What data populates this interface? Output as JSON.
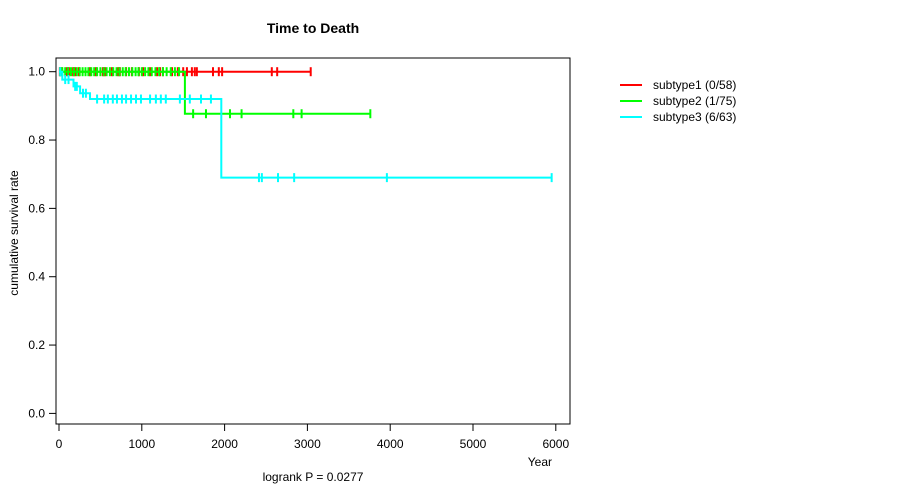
{
  "chart": {
    "title": "Time to Death",
    "xlabel": "Year",
    "ylabel": "cumulative survival rate",
    "annotation": "logrank P = 0.0277"
  },
  "legend": {
    "position": "right",
    "items": [
      {
        "label": "subtype1 (0/58)",
        "color": "#ff0000"
      },
      {
        "label": "subtype2 (1/75)",
        "color": "#00ff00"
      },
      {
        "label": "subtype3 (6/63)",
        "color": "#00ffff"
      }
    ]
  },
  "colors": {
    "subtype1": "#ff0000",
    "subtype2": "#00ff00",
    "subtype3": "#00ffff",
    "axis": "#000000",
    "text": "#000000",
    "background": "#ffffff"
  },
  "chart_data": {
    "type": "line",
    "variant": "kaplan-meier-step",
    "title": "Time to Death",
    "xlabel": "Year",
    "ylabel": "cumulative survival rate",
    "annotation": "logrank P = 0.0277",
    "xlim": [
      0,
      6000
    ],
    "ylim": [
      0.0,
      1.0
    ],
    "xticks": [
      0,
      1000,
      2000,
      3000,
      4000,
      5000,
      6000
    ],
    "yticks": [
      0.0,
      0.2,
      0.4,
      0.6,
      0.8,
      1.0
    ],
    "grid": false,
    "legend_position": "right-outside",
    "series": [
      {
        "name": "subtype1 (0/58)",
        "color": "#ff0000",
        "n": 58,
        "events": 0,
        "step_points": [
          [
            0,
            1.0
          ],
          [
            3050,
            1.0
          ]
        ],
        "censor_marks": [
          [
            10,
            1.0
          ],
          [
            35,
            1.0
          ],
          [
            95,
            1.0
          ],
          [
            120,
            1.0
          ],
          [
            170,
            1.0
          ],
          [
            195,
            1.0
          ],
          [
            240,
            1.0
          ],
          [
            375,
            1.0
          ],
          [
            445,
            1.0
          ],
          [
            530,
            1.0
          ],
          [
            555,
            1.0
          ],
          [
            640,
            1.0
          ],
          [
            715,
            1.0
          ],
          [
            735,
            1.0
          ],
          [
            810,
            1.0
          ],
          [
            880,
            1.0
          ],
          [
            965,
            1.0
          ],
          [
            1015,
            1.0
          ],
          [
            1100,
            1.0
          ],
          [
            1185,
            1.0
          ],
          [
            1220,
            1.0
          ],
          [
            1255,
            1.0
          ],
          [
            1365,
            1.0
          ],
          [
            1435,
            1.0
          ],
          [
            1500,
            1.0
          ],
          [
            1545,
            1.0
          ],
          [
            1605,
            1.0
          ],
          [
            1640,
            1.0
          ],
          [
            1665,
            1.0
          ],
          [
            1860,
            1.0
          ],
          [
            1930,
            1.0
          ],
          [
            1970,
            1.0
          ],
          [
            2570,
            1.0
          ],
          [
            2635,
            1.0
          ],
          [
            3040,
            1.0
          ]
        ]
      },
      {
        "name": "subtype2 (1/75)",
        "color": "#00ff00",
        "n": 75,
        "events": 1,
        "step_points": [
          [
            0,
            1.0
          ],
          [
            1520,
            1.0
          ],
          [
            1520,
            0.877
          ],
          [
            3760,
            0.877
          ]
        ],
        "censor_marks": [
          [
            15,
            1.0
          ],
          [
            40,
            1.0
          ],
          [
            75,
            1.0
          ],
          [
            110,
            1.0
          ],
          [
            145,
            1.0
          ],
          [
            180,
            1.0
          ],
          [
            215,
            1.0
          ],
          [
            250,
            1.0
          ],
          [
            285,
            1.0
          ],
          [
            320,
            1.0
          ],
          [
            355,
            1.0
          ],
          [
            390,
            1.0
          ],
          [
            425,
            1.0
          ],
          [
            460,
            1.0
          ],
          [
            500,
            1.0
          ],
          [
            540,
            1.0
          ],
          [
            575,
            1.0
          ],
          [
            615,
            1.0
          ],
          [
            655,
            1.0
          ],
          [
            695,
            1.0
          ],
          [
            730,
            1.0
          ],
          [
            770,
            1.0
          ],
          [
            805,
            1.0
          ],
          [
            845,
            1.0
          ],
          [
            885,
            1.0
          ],
          [
            925,
            1.0
          ],
          [
            960,
            1.0
          ],
          [
            1000,
            1.0
          ],
          [
            1040,
            1.0
          ],
          [
            1080,
            1.0
          ],
          [
            1120,
            1.0
          ],
          [
            1165,
            1.0
          ],
          [
            1210,
            1.0
          ],
          [
            1255,
            1.0
          ],
          [
            1300,
            1.0
          ],
          [
            1350,
            1.0
          ],
          [
            1400,
            1.0
          ],
          [
            1450,
            1.0
          ],
          [
            1620,
            0.877
          ],
          [
            1775,
            0.877
          ],
          [
            2065,
            0.877
          ],
          [
            2205,
            0.877
          ],
          [
            2830,
            0.877
          ],
          [
            2930,
            0.877
          ],
          [
            3760,
            0.877
          ]
        ]
      },
      {
        "name": "subtype3 (6/63)",
        "color": "#00ffff",
        "n": 63,
        "events": 6,
        "step_points": [
          [
            0,
            1.0
          ],
          [
            40,
            1.0
          ],
          [
            40,
            0.977
          ],
          [
            175,
            0.977
          ],
          [
            175,
            0.957
          ],
          [
            255,
            0.957
          ],
          [
            255,
            0.937
          ],
          [
            375,
            0.937
          ],
          [
            375,
            0.92
          ],
          [
            1960,
            0.92
          ],
          [
            1960,
            0.69
          ],
          [
            5950,
            0.69
          ]
        ],
        "censor_marks": [
          [
            15,
            1.0
          ],
          [
            75,
            0.977
          ],
          [
            115,
            0.977
          ],
          [
            195,
            0.957
          ],
          [
            215,
            0.957
          ],
          [
            290,
            0.937
          ],
          [
            325,
            0.937
          ],
          [
            460,
            0.92
          ],
          [
            545,
            0.92
          ],
          [
            590,
            0.92
          ],
          [
            650,
            0.92
          ],
          [
            700,
            0.92
          ],
          [
            760,
            0.92
          ],
          [
            810,
            0.92
          ],
          [
            870,
            0.92
          ],
          [
            930,
            0.92
          ],
          [
            990,
            0.92
          ],
          [
            1100,
            0.92
          ],
          [
            1170,
            0.92
          ],
          [
            1230,
            0.92
          ],
          [
            1290,
            0.92
          ],
          [
            1460,
            0.92
          ],
          [
            1580,
            0.92
          ],
          [
            1715,
            0.92
          ],
          [
            1835,
            0.92
          ],
          [
            2415,
            0.69
          ],
          [
            2450,
            0.69
          ],
          [
            2645,
            0.69
          ],
          [
            2840,
            0.69
          ],
          [
            3960,
            0.69
          ],
          [
            5950,
            0.69
          ]
        ]
      }
    ]
  }
}
